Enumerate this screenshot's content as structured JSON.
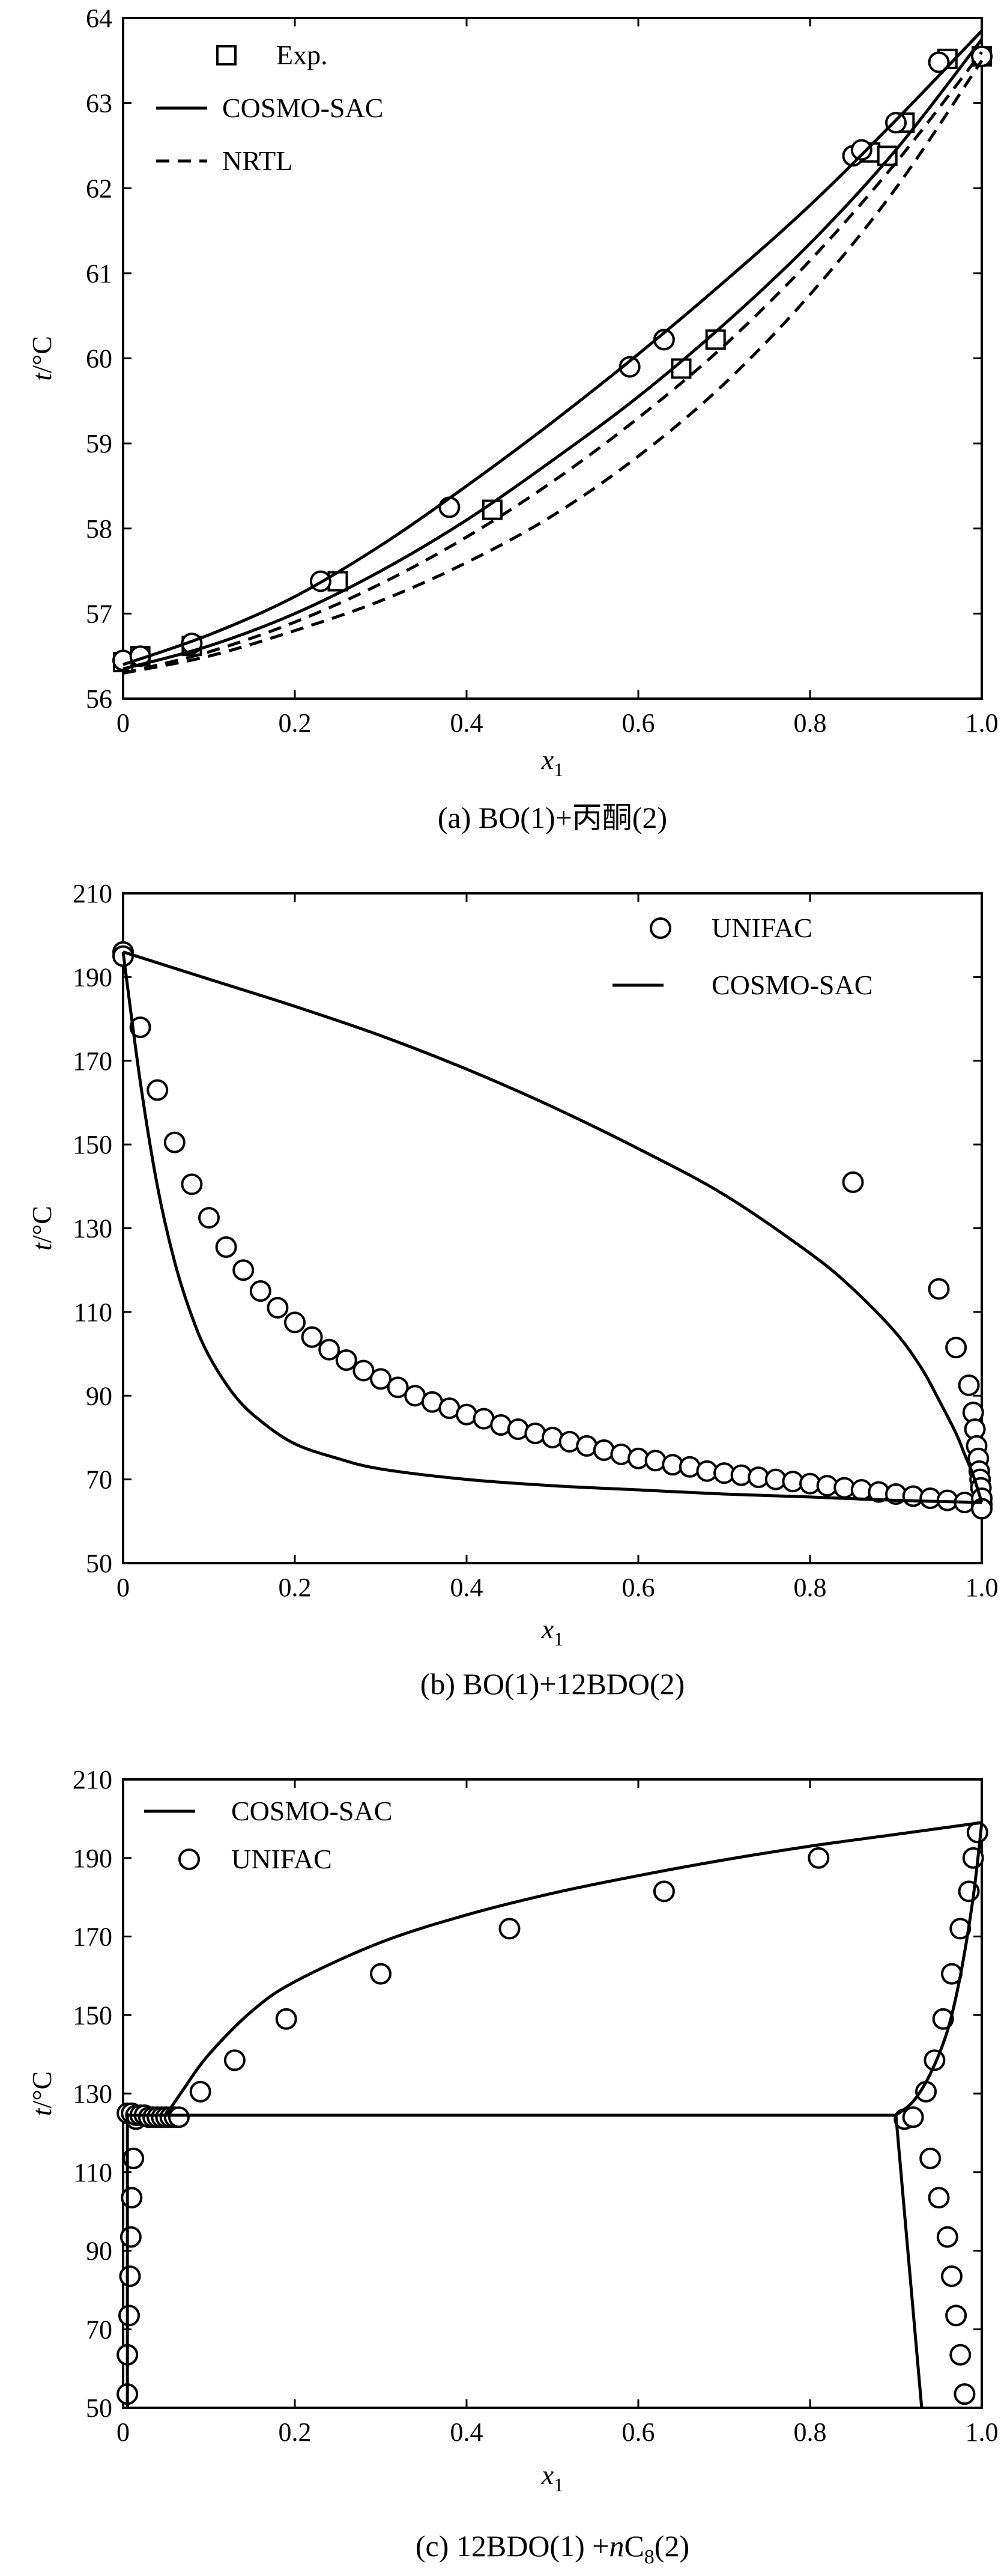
{
  "chart_data": [
    {
      "id": "a",
      "type": "line",
      "caption": "(a) BO(1)+丙酮(2)",
      "xlabel": "x1",
      "ylabel": "t/°C",
      "xlim": [
        0,
        1.0
      ],
      "ylim": [
        56,
        64
      ],
      "xticks": [
        0,
        0.2,
        0.4,
        0.6,
        0.8,
        1.0
      ],
      "xtick_labels": [
        "0",
        "0.2",
        "0.4",
        "0.6",
        "0.8",
        "1.0"
      ],
      "yticks": [
        56,
        57,
        58,
        59,
        60,
        61,
        62,
        63,
        64
      ],
      "ytick_labels": [
        "56",
        "57",
        "58",
        "59",
        "60",
        "61",
        "62",
        "63",
        "64"
      ],
      "legend": [
        {
          "label": "Exp.",
          "kind": "square"
        },
        {
          "label": "COSMO-SAC",
          "kind": "solid"
        },
        {
          "label": "NRTL",
          "kind": "dashed"
        }
      ],
      "series": [
        {
          "name": "Exp.",
          "kind": "square",
          "x": [
            0.0,
            0.02,
            0.08,
            0.25,
            0.43,
            0.65,
            0.69,
            0.87,
            0.89,
            0.91,
            0.96,
            1.0
          ],
          "y": [
            56.43,
            56.5,
            56.62,
            57.38,
            58.22,
            59.88,
            60.22,
            62.42,
            62.38,
            62.77,
            63.52,
            63.55
          ]
        },
        {
          "name": "Exp.",
          "kind": "circle",
          "x": [
            0.0,
            0.02,
            0.08,
            0.23,
            0.38,
            0.59,
            0.63,
            0.85,
            0.86,
            0.9,
            0.95,
            1.0
          ],
          "y": [
            56.45,
            56.5,
            56.65,
            57.38,
            58.25,
            59.9,
            60.22,
            62.38,
            62.45,
            62.77,
            63.48,
            63.55
          ]
        },
        {
          "name": "COSMO-SAC",
          "kind": "solid",
          "x": [
            0,
            0.1,
            0.2,
            0.3,
            0.4,
            0.5,
            0.6,
            0.7,
            0.8,
            0.9,
            1.0
          ],
          "y": [
            56.4,
            56.75,
            57.2,
            57.8,
            58.5,
            59.25,
            60.05,
            60.9,
            61.8,
            62.8,
            63.85
          ]
        },
        {
          "name": "COSMO-SAC",
          "kind": "solid",
          "x": [
            0,
            0.1,
            0.2,
            0.3,
            0.4,
            0.5,
            0.6,
            0.7,
            0.8,
            0.9,
            1.0
          ],
          "y": [
            56.35,
            56.62,
            57.0,
            57.5,
            58.1,
            58.8,
            59.55,
            60.4,
            61.35,
            62.45,
            63.75
          ]
        },
        {
          "name": "NRTL",
          "kind": "dashed",
          "x": [
            0,
            0.1,
            0.2,
            0.3,
            0.4,
            0.5,
            0.6,
            0.7,
            0.8,
            0.9,
            1.0
          ],
          "y": [
            56.3,
            56.55,
            56.9,
            57.35,
            57.9,
            58.55,
            59.3,
            60.15,
            61.15,
            62.3,
            63.6
          ]
        },
        {
          "name": "NRTL",
          "kind": "dashed",
          "x": [
            0,
            0.1,
            0.2,
            0.3,
            0.4,
            0.5,
            0.6,
            0.7,
            0.8,
            0.9,
            1.0
          ],
          "y": [
            56.3,
            56.5,
            56.8,
            57.15,
            57.6,
            58.15,
            58.85,
            59.7,
            60.75,
            62.0,
            63.5
          ]
        }
      ]
    },
    {
      "id": "b",
      "type": "line",
      "caption": "(b) BO(1)+12BDO(2)",
      "xlabel": "x1",
      "ylabel": "t/°C",
      "xlim": [
        0,
        1.0
      ],
      "ylim": [
        50,
        210
      ],
      "xticks": [
        0,
        0.2,
        0.4,
        0.6,
        0.8,
        1.0
      ],
      "xtick_labels": [
        "0",
        "0.2",
        "0.4",
        "0.6",
        "0.8",
        "1.0"
      ],
      "yticks": [
        50,
        70,
        90,
        110,
        130,
        150,
        170,
        190,
        210
      ],
      "ytick_labels": [
        "50",
        "70",
        "90",
        "110",
        "130",
        "150",
        "170",
        "190",
        "210"
      ],
      "legend": [
        {
          "label": "UNIFAC",
          "kind": "circle"
        },
        {
          "label": "COSMO-SAC",
          "kind": "solid"
        }
      ],
      "series": [
        {
          "name": "UNIFAC",
          "kind": "circle",
          "x": [
            0.0,
            0.0,
            0.02,
            0.04,
            0.06,
            0.08,
            0.1,
            0.12,
            0.14,
            0.16,
            0.18,
            0.2,
            0.22,
            0.24,
            0.26,
            0.28,
            0.3,
            0.32,
            0.34,
            0.36,
            0.38,
            0.4,
            0.42,
            0.44,
            0.46,
            0.48,
            0.5,
            0.52,
            0.54,
            0.56,
            0.58,
            0.6,
            0.62,
            0.64,
            0.66,
            0.68,
            0.7,
            0.72,
            0.74,
            0.76,
            0.78,
            0.8,
            0.82,
            0.84,
            0.86,
            0.88,
            0.9,
            0.92,
            0.94,
            0.96,
            0.98,
            1.0,
            0.85,
            0.95,
            0.97,
            0.985,
            0.99,
            0.992,
            0.994,
            0.996,
            0.997,
            0.998,
            0.999,
            1.0,
            1.0
          ],
          "y": [
            196,
            195,
            178,
            163,
            150.5,
            140.5,
            132.5,
            125.5,
            120,
            115,
            111,
            107.5,
            104,
            101,
            98.5,
            96,
            94,
            92,
            90,
            88.5,
            87,
            85.5,
            84.5,
            83,
            82,
            81,
            80,
            79,
            78,
            77,
            76,
            75,
            74.5,
            73.5,
            73,
            72,
            71.5,
            71,
            70.5,
            70,
            69.5,
            69,
            68.5,
            68,
            67.5,
            67,
            66.5,
            66,
            65.5,
            65,
            64.5,
            64,
            141,
            115.5,
            101.5,
            92.5,
            86,
            82,
            78,
            75,
            72,
            70,
            68,
            65.5,
            63
          ]
        },
        {
          "name": "COSMO-SAC",
          "kind": "solid",
          "x": [
            0,
            0.1,
            0.2,
            0.3,
            0.4,
            0.5,
            0.6,
            0.7,
            0.8,
            0.85,
            0.9,
            0.93,
            0.95,
            0.97,
            0.98,
            0.99,
            1.0
          ],
          "y": [
            196,
            189.5,
            183,
            176,
            168,
            159,
            149,
            138,
            124,
            115.5,
            105,
            96.5,
            89,
            81,
            76,
            71,
            64.5
          ]
        },
        {
          "name": "COSMO-SAC",
          "kind": "solid",
          "x": [
            0,
            0.02,
            0.04,
            0.06,
            0.08,
            0.1,
            0.13,
            0.16,
            0.2,
            0.25,
            0.3,
            0.4,
            0.5,
            0.6,
            0.7,
            0.8,
            0.9,
            1.0
          ],
          "y": [
            196,
            165,
            140,
            122,
            109,
            99.5,
            90,
            84,
            78.5,
            75,
            72.5,
            70,
            68.5,
            67.5,
            66.5,
            65.8,
            65,
            64.5
          ]
        }
      ]
    },
    {
      "id": "c",
      "type": "line",
      "caption": "(c) 12BDO(1) +nC8(2)",
      "xlabel": "x1",
      "ylabel": "t/°C",
      "xlim": [
        0,
        1.0
      ],
      "ylim": [
        50,
        210
      ],
      "xticks": [
        0,
        0.2,
        0.4,
        0.6,
        0.8,
        1.0
      ],
      "xtick_labels": [
        "0",
        "0.2",
        "0.4",
        "0.6",
        "0.8",
        "1.0"
      ],
      "yticks": [
        50,
        70,
        90,
        110,
        130,
        150,
        170,
        190,
        210
      ],
      "ytick_labels": [
        "50",
        "70",
        "90",
        "110",
        "130",
        "150",
        "170",
        "190",
        "210"
      ],
      "legend": [
        {
          "label": "COSMO-SAC",
          "kind": "solid"
        },
        {
          "label": "UNIFAC",
          "kind": "circle"
        }
      ],
      "series": [
        {
          "name": "UNIFAC",
          "kind": "circle",
          "x": [
            0.005,
            0.005,
            0.007,
            0.008,
            0.009,
            0.01,
            0.012,
            0.015,
            0.005,
            0.01,
            0.015,
            0.02,
            0.025,
            0.03,
            0.035,
            0.04,
            0.045,
            0.05,
            0.055,
            0.06,
            0.065,
            0.09,
            0.13,
            0.19,
            0.3,
            0.45,
            0.63,
            0.81,
            0.91,
            0.92,
            0.935,
            0.945,
            0.955,
            0.965,
            0.975,
            0.985,
            0.99,
            0.995,
            0.94,
            0.95,
            0.96,
            0.965,
            0.97,
            0.975,
            0.98
          ],
          "y": [
            53.5,
            63.5,
            73.5,
            83.5,
            93.5,
            103.5,
            113.5,
            123.5,
            125,
            125,
            124.5,
            124.5,
            124.5,
            124,
            124,
            124,
            124,
            124,
            124,
            124,
            124,
            130.5,
            138.5,
            149,
            160.5,
            172,
            181.5,
            190,
            123.5,
            124,
            130.5,
            138.5,
            149,
            160.5,
            172,
            181.5,
            190,
            196.5,
            113.5,
            103.5,
            93.5,
            83.5,
            73.5,
            63.5,
            53.5
          ]
        },
        {
          "name": "COSMO-SAC",
          "kind": "solid",
          "x": [
            0.005,
            0.005
          ],
          "y": [
            50,
            125
          ]
        },
        {
          "name": "COSMO-SAC",
          "kind": "solid",
          "x": [
            0.005,
            0.9
          ],
          "y": [
            124.5,
            124.5
          ]
        },
        {
          "name": "COSMO-SAC",
          "kind": "solid",
          "x": [
            0.9,
            0.93
          ],
          "y": [
            124.5,
            50
          ]
        },
        {
          "name": "COSMO-SAC",
          "kind": "solid",
          "x": [
            0.05,
            0.07,
            0.1,
            0.15,
            0.2,
            0.3,
            0.4,
            0.5,
            0.6,
            0.7,
            0.8,
            0.9,
            1.0
          ],
          "y": [
            124.5,
            131,
            140,
            151,
            158.5,
            168.5,
            175.5,
            181,
            185.5,
            189.5,
            193,
            196,
            199
          ]
        },
        {
          "name": "COSMO-SAC",
          "kind": "solid",
          "x": [
            0.9,
            0.92,
            0.94,
            0.96,
            0.975,
            0.99,
            1.0
          ],
          "y": [
            124.5,
            128,
            135,
            146,
            160,
            180,
            199
          ]
        }
      ]
    }
  ]
}
